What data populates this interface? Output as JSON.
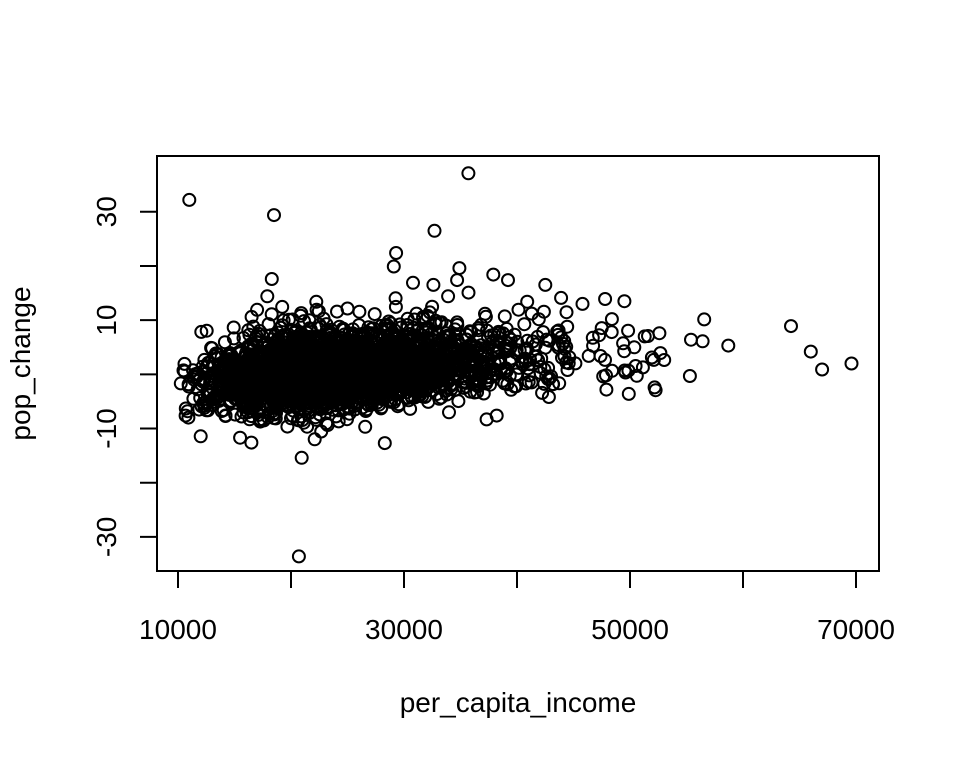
{
  "figure": {
    "background": "#ffffff",
    "foreground": "#000000"
  },
  "chart_data": {
    "type": "scatter",
    "title": "",
    "xlabel": "per_capita_income",
    "ylabel": "pop_change",
    "xlim": [
      8142,
      72035
    ],
    "ylim": [
      -36.3,
      40.3
    ],
    "x_ticks": [
      10000,
      20000,
      30000,
      40000,
      50000,
      60000,
      70000
    ],
    "x_tick_labels": [
      "10000",
      "",
      "30000",
      "",
      "50000",
      "",
      "70000"
    ],
    "y_ticks": [
      -30,
      -20,
      -10,
      0,
      10,
      20,
      30
    ],
    "y_tick_labels": [
      "-30",
      "",
      "-10",
      "",
      "10",
      "",
      "30"
    ],
    "grid": false,
    "legend": null,
    "marker": {
      "shape": "open-circle",
      "radius_px": 6,
      "stroke_px": 2,
      "color": "#000000"
    },
    "n_points_total_approx": 2940,
    "notable_points": [
      [
        35700,
        37.1
      ],
      [
        11000,
        32.2
      ],
      [
        18500,
        29.4
      ],
      [
        32700,
        26.5
      ],
      [
        29300,
        22.4
      ],
      [
        29100,
        19.9
      ],
      [
        34900,
        19.6
      ],
      [
        37900,
        18.4
      ],
      [
        18300,
        17.6
      ],
      [
        34700,
        17.4
      ],
      [
        39200,
        17.4
      ],
      [
        30800,
        16.9
      ],
      [
        42500,
        16.5
      ],
      [
        32600,
        16.5
      ],
      [
        33900,
        14.4
      ],
      [
        17900,
        14.4
      ],
      [
        43900,
        14.1
      ],
      [
        47800,
        13.9
      ],
      [
        49500,
        13.5
      ],
      [
        40900,
        13.4
      ],
      [
        45800,
        13.0
      ],
      [
        48400,
        10.2
      ],
      [
        64250,
        8.9
      ],
      [
        52600,
        7.6
      ],
      [
        55400,
        6.4
      ],
      [
        58700,
        5.3
      ],
      [
        66000,
        4.2
      ],
      [
        69600,
        2.0
      ],
      [
        67000,
        0.9
      ],
      [
        55300,
        -0.3
      ],
      [
        15500,
        -11.7
      ],
      [
        22100,
        -12.0
      ],
      [
        16500,
        -12.6
      ],
      [
        28300,
        -12.7
      ],
      [
        20950,
        -15.4
      ],
      [
        20700,
        -33.6
      ]
    ],
    "dense_cloud": {
      "description": "approx 2900 heavily overplotted counties forming a solid mass centered near (24000, 0), right-skewed in income, mild positive trend in pop_change",
      "seed": 20240613,
      "count": 2900,
      "x_lognormal": {
        "mean_log": 10.0777,
        "sd_log": 0.28,
        "min": 10200,
        "max": 57500
      },
      "y_model": {
        "base": -2.0,
        "slope": 10.5,
        "slope_t_cap": 0.5,
        "sd": 3.3,
        "min": -16,
        "max": 18
      },
      "up_tail": {
        "prob": 0.06,
        "offset": 2.0,
        "scale": 3.2
      },
      "down_tail": {
        "prob": 0.013,
        "offset": 2.0,
        "scale": 2.6
      }
    }
  }
}
